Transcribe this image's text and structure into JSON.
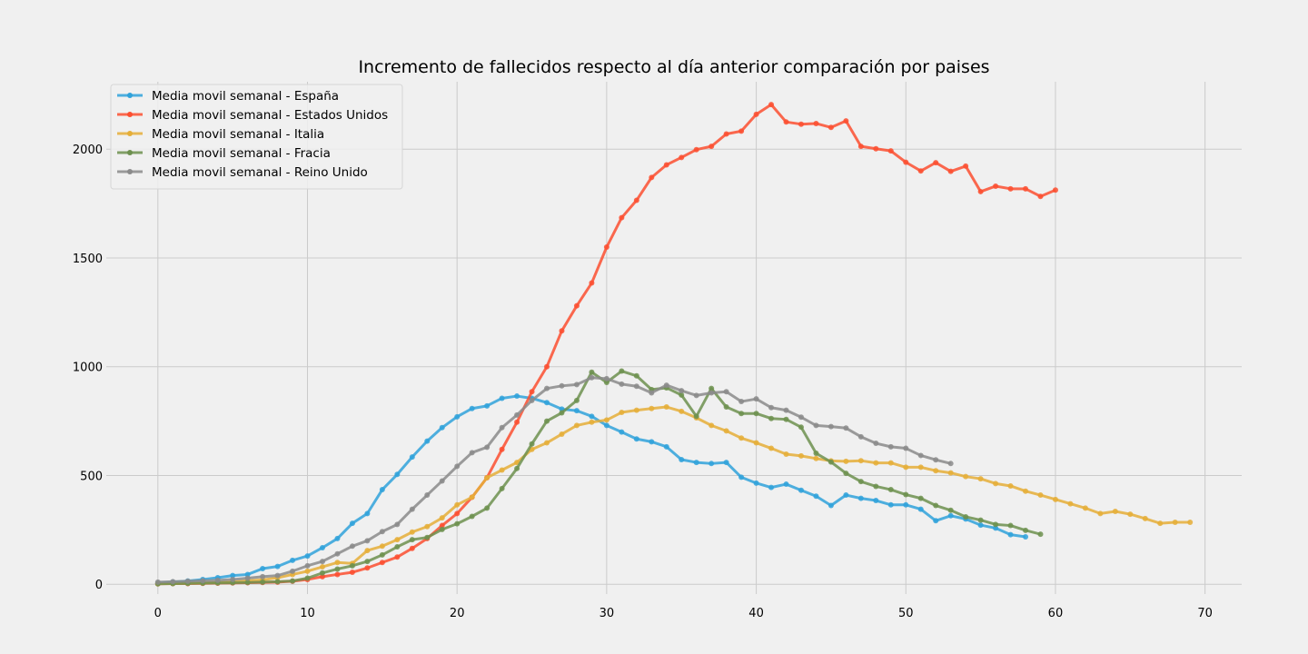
{
  "chart_data": {
    "type": "line",
    "title": "Incremento de fallecidos respecto al día anterior comparación por paises",
    "xlabel": "",
    "ylabel": "",
    "xlim": [
      -3.45,
      72.45
    ],
    "ylim": [
      -45,
      2310
    ],
    "xticks": [
      0,
      10,
      20,
      30,
      40,
      50,
      60,
      70
    ],
    "yticks": [
      0,
      500,
      1000,
      1500,
      2000
    ],
    "grid": true,
    "legend_position": "top-left",
    "series": [
      {
        "name": "Media movil semanal - España",
        "color": "#30a2da",
        "values": [
          5,
          10,
          15,
          22,
          30,
          40,
          45,
          72,
          82,
          110,
          130,
          168,
          210,
          280,
          325,
          435,
          505,
          585,
          658,
          720,
          770,
          808,
          820,
          855,
          865,
          855,
          835,
          805,
          798,
          772,
          730,
          700,
          668,
          655,
          632,
          573,
          560,
          555,
          560,
          492,
          465,
          445,
          460,
          432,
          405,
          362,
          410,
          395,
          385,
          365,
          365,
          345,
          292,
          315,
          300,
          272,
          258,
          228,
          218
        ],
        "x_start": 0
      },
      {
        "name": "Media movil semanal - Estados Unidos",
        "color": "#fc4f30",
        "values": [
          2,
          3,
          3,
          4,
          5,
          6,
          7,
          8,
          10,
          14,
          22,
          35,
          45,
          55,
          75,
          100,
          125,
          165,
          210,
          270,
          325,
          400,
          490,
          620,
          745,
          885,
          1000,
          1165,
          1280,
          1385,
          1550,
          1685,
          1765,
          1870,
          1928,
          1962,
          1998,
          2013,
          2070,
          2083,
          2160,
          2205,
          2125,
          2115,
          2118,
          2100,
          2130,
          2013,
          2002,
          1992,
          1940,
          1900,
          1938,
          1898,
          1922,
          1805,
          1830,
          1818,
          1818,
          1783,
          1812
        ],
        "x_start": 0
      },
      {
        "name": "Media movil semanal - Italia",
        "color": "#e5ae38",
        "values": [
          3,
          4,
          5,
          7,
          9,
          12,
          16,
          20,
          30,
          45,
          60,
          80,
          100,
          96,
          155,
          175,
          205,
          240,
          265,
          305,
          365,
          400,
          490,
          525,
          560,
          620,
          650,
          690,
          730,
          745,
          755,
          790,
          800,
          808,
          815,
          795,
          765,
          730,
          705,
          672,
          650,
          625,
          598,
          590,
          578,
          567,
          565,
          568,
          558,
          558,
          538,
          538,
          522,
          512,
          495,
          485,
          463,
          452,
          428,
          410,
          390,
          370,
          350,
          325,
          335,
          322,
          302,
          280,
          285,
          285
        ],
        "x_start": 0
      },
      {
        "name": "Media movil semanal - Fracia",
        "color": "#6d904f",
        "values": [
          2,
          3,
          4,
          5,
          6,
          7,
          8,
          10,
          12,
          15,
          28,
          52,
          70,
          85,
          105,
          135,
          172,
          205,
          215,
          252,
          278,
          312,
          350,
          440,
          532,
          645,
          750,
          788,
          845,
          975,
          928,
          980,
          958,
          895,
          903,
          870,
          772,
          900,
          815,
          785,
          785,
          762,
          758,
          722,
          602,
          562,
          510,
          472,
          450,
          435,
          412,
          395,
          362,
          340,
          310,
          295,
          275,
          270,
          248,
          230
        ],
        "x_start": 0
      },
      {
        "name": "Media movil semanal - Reino Unido",
        "color": "#8b8b8b",
        "values": [
          10,
          12,
          14,
          16,
          18,
          22,
          28,
          35,
          40,
          60,
          85,
          105,
          140,
          175,
          200,
          242,
          275,
          345,
          410,
          475,
          542,
          605,
          630,
          720,
          778,
          845,
          900,
          912,
          918,
          950,
          945,
          920,
          910,
          880,
          915,
          890,
          868,
          880,
          885,
          840,
          852,
          812,
          800,
          768,
          730,
          725,
          718,
          678,
          648,
          632,
          625,
          592,
          572,
          555
        ],
        "x_start": 0
      }
    ]
  }
}
